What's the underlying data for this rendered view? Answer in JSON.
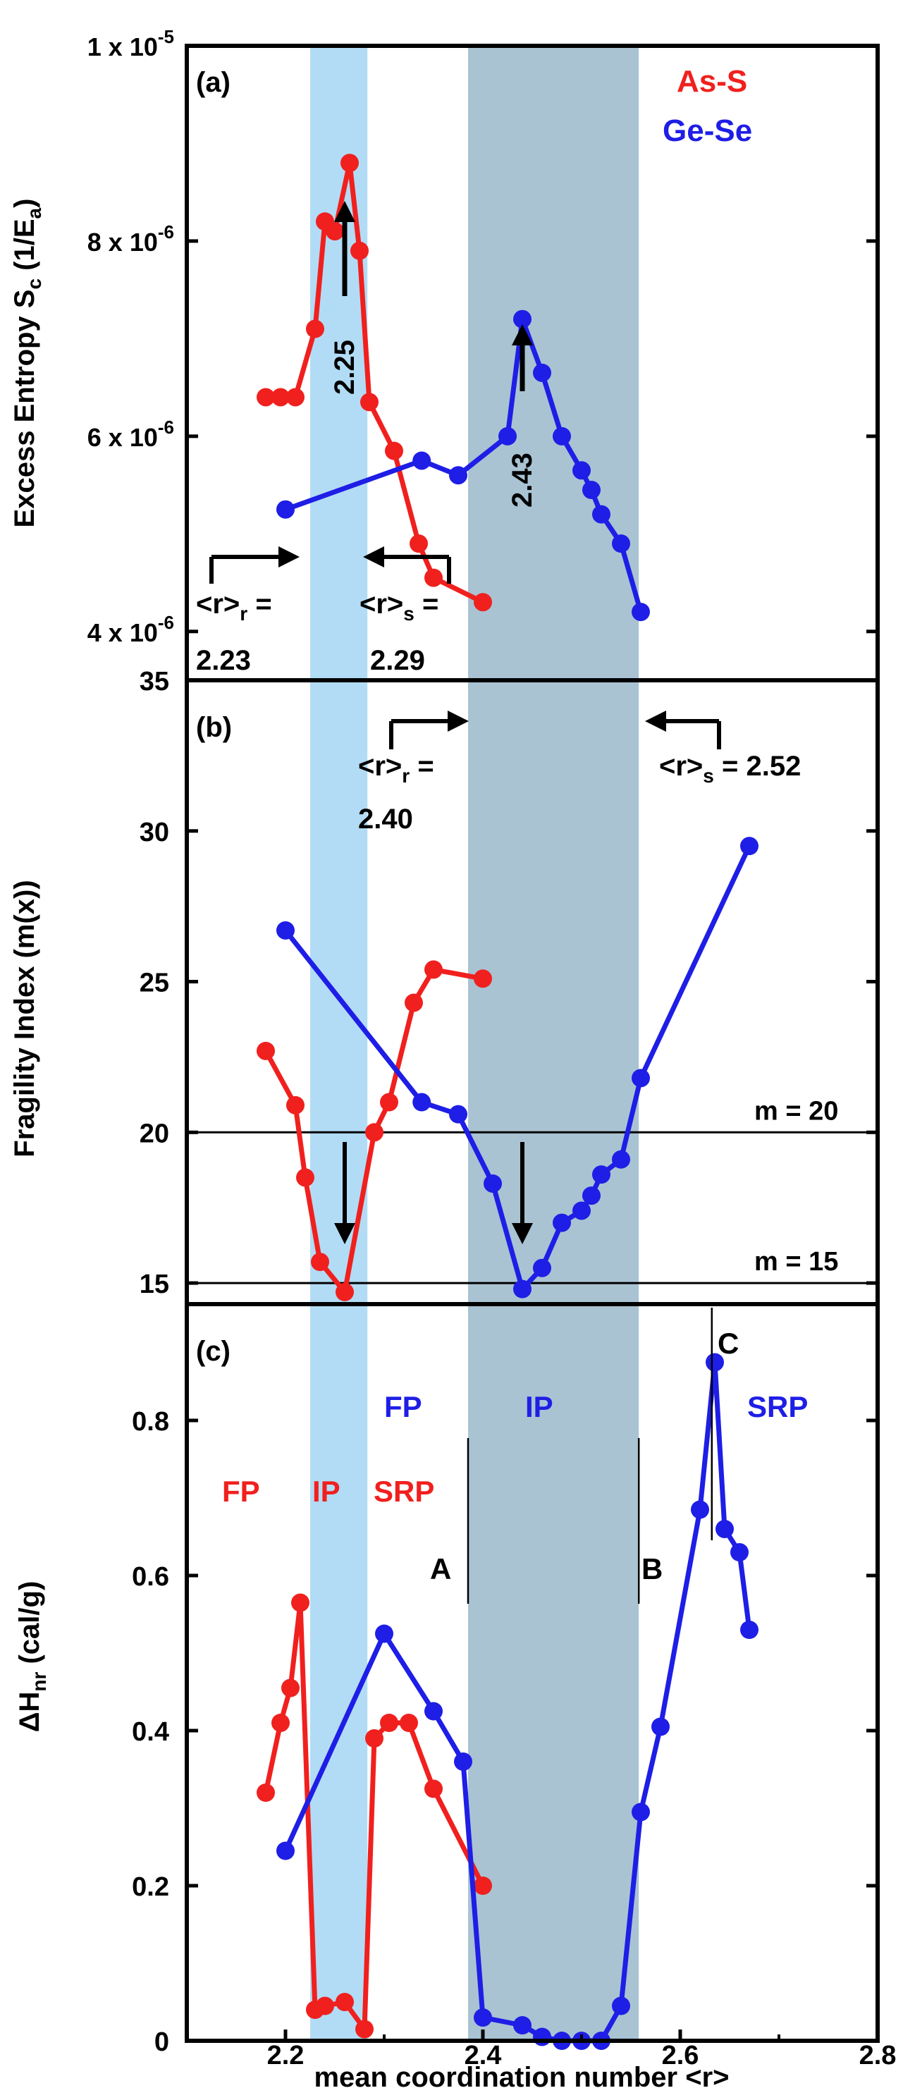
{
  "colors": {
    "as_s": "#f0201e",
    "ge_se": "#1e1ee6",
    "band_as_s": "#b2dcf5",
    "band_ge_se": "#a9c3d3",
    "axis": "#000000"
  },
  "x_axis": {
    "label": "mean coordination number <r>",
    "ticks": [
      "2.2",
      "2.4",
      "2.6",
      "2.8"
    ],
    "range": [
      2.1,
      2.8
    ]
  },
  "bands": [
    {
      "series": "As-S",
      "from": 2.225,
      "to": 2.283
    },
    {
      "series": "Ge-Se",
      "from": 2.385,
      "to": 2.558
    }
  ],
  "chart_data": [
    {
      "type": "line",
      "panel_label": "(a)",
      "ylabel_main": "Excess Entropy S",
      "ylabel_sub": "c",
      "ylabel_rest": " (1/E",
      "ylabel_sub2": "a",
      "ylabel_end": ")",
      "ylim": [
        3.5e-06,
        1e-05
      ],
      "yticks": [
        {
          "value": 1e-05,
          "mant": "1 x 10",
          "exp": "-5"
        },
        {
          "value": 8e-06,
          "mant": "8 x 10",
          "exp": "-6"
        },
        {
          "value": 6e-06,
          "mant": "6 x 10",
          "exp": "-6"
        },
        {
          "value": 4e-06,
          "mant": "4 x 10",
          "exp": "-6"
        }
      ],
      "legend": [
        "As-S",
        "Ge-Se"
      ],
      "series": [
        {
          "name": "As-S",
          "x": [
            2.18,
            2.195,
            2.21,
            2.23,
            2.24,
            2.25,
            2.265,
            2.275,
            2.285,
            2.31,
            2.335,
            2.35,
            2.4
          ],
          "y": [
            6.4e-06,
            6.4e-06,
            6.4e-06,
            7.1e-06,
            8.2e-06,
            8.1e-06,
            8.8e-06,
            7.9e-06,
            6.35e-06,
            5.85e-06,
            4.9e-06,
            4.55e-06,
            4.3e-06
          ]
        },
        {
          "name": "Ge-Se",
          "x": [
            2.2,
            2.338,
            2.375,
            2.425,
            2.44,
            2.46,
            2.48,
            2.5,
            2.51,
            2.52,
            2.54,
            2.56
          ],
          "y": [
            5.25e-06,
            5.75e-06,
            5.6e-06,
            6e-06,
            7.2e-06,
            6.65e-06,
            6e-06,
            5.65e-06,
            5.45e-06,
            5.2e-06,
            4.9e-06,
            4.2e-06
          ]
        }
      ],
      "arrows": [
        {
          "x": 2.26,
          "label": "2.25"
        },
        {
          "x": 2.44,
          "label": "2.43"
        }
      ],
      "threshold_labels": {
        "r_r": "<r>",
        "r_r_sub": "r",
        "r_r_eq": " =",
        "r_r_val": "2.23",
        "r_s": "<r>",
        "r_s_sub": "s",
        "r_s_eq": " =",
        "r_s_val": "2.29"
      }
    },
    {
      "type": "line",
      "panel_label": "(b)",
      "ylabel": "Fragility Index (m(x))",
      "ylim": [
        14.3,
        35
      ],
      "yticks": [
        "15",
        "20",
        "25",
        "30",
        "35"
      ],
      "hlines": [
        {
          "y": 20,
          "label": "m = 20"
        },
        {
          "y": 15,
          "label": "m = 15"
        }
      ],
      "series": [
        {
          "name": "As-S",
          "x": [
            2.18,
            2.21,
            2.22,
            2.235,
            2.26,
            2.29,
            2.305,
            2.33,
            2.35,
            2.4
          ],
          "y": [
            22.7,
            20.9,
            18.5,
            15.7,
            14.7,
            20.0,
            21.0,
            24.3,
            25.4,
            25.1
          ]
        },
        {
          "name": "Ge-Se",
          "x": [
            2.2,
            2.338,
            2.375,
            2.41,
            2.44,
            2.46,
            2.48,
            2.5,
            2.51,
            2.52,
            2.54,
            2.56,
            2.67
          ],
          "y": [
            26.7,
            21.0,
            20.6,
            18.3,
            14.8,
            15.5,
            17.0,
            17.4,
            17.9,
            18.6,
            19.1,
            21.8,
            29.5
          ]
        }
      ],
      "arrows": [
        {
          "x": 2.26,
          "series": "As-S"
        },
        {
          "x": 2.44,
          "series": "Ge-Se"
        }
      ],
      "threshold_labels": {
        "r_r": "<r>",
        "r_r_sub": "r",
        "r_r_eq": " =",
        "r_r_val": "2.40",
        "r_s": "<r>",
        "r_s_sub": "s",
        "r_s_eq": " =  2.52"
      }
    },
    {
      "type": "line",
      "panel_label": "(c)",
      "ylabel_main": "ΔH",
      "ylabel_sub": "nr",
      "ylabel_rest": " (cal/g)",
      "ylim": [
        0,
        0.95
      ],
      "yticks": [
        "0",
        "0.2",
        "0.4",
        "0.6",
        "0.8"
      ],
      "series": [
        {
          "name": "As-S",
          "x": [
            2.18,
            2.195,
            2.205,
            2.215,
            2.23,
            2.24,
            2.26,
            2.28,
            2.29,
            2.305,
            2.325,
            2.35,
            2.4
          ],
          "y": [
            0.32,
            0.41,
            0.455,
            0.565,
            0.04,
            0.045,
            0.05,
            0.015,
            0.39,
            0.41,
            0.41,
            0.325,
            0.2
          ]
        },
        {
          "name": "Ge-Se",
          "x": [
            2.2,
            2.3,
            2.35,
            2.38,
            2.4,
            2.44,
            2.46,
            2.48,
            2.5,
            2.52,
            2.54,
            2.56,
            2.58,
            2.62,
            2.635,
            2.645,
            2.66,
            2.67
          ],
          "y": [
            0.245,
            0.525,
            0.425,
            0.36,
            0.03,
            0.02,
            0.005,
            0.0,
            0.0,
            0.0,
            0.045,
            0.295,
            0.405,
            0.685,
            0.875,
            0.66,
            0.63,
            0.53
          ]
        }
      ],
      "region_labels": {
        "as_s_fp": "FP",
        "as_s_ip": "IP",
        "as_s_srp": "SRP",
        "ge_se_fp": "FP",
        "ge_se_ip": "IP",
        "ge_se_srp": "SRP",
        "a": "A",
        "b": "B",
        "c": "C"
      }
    }
  ]
}
